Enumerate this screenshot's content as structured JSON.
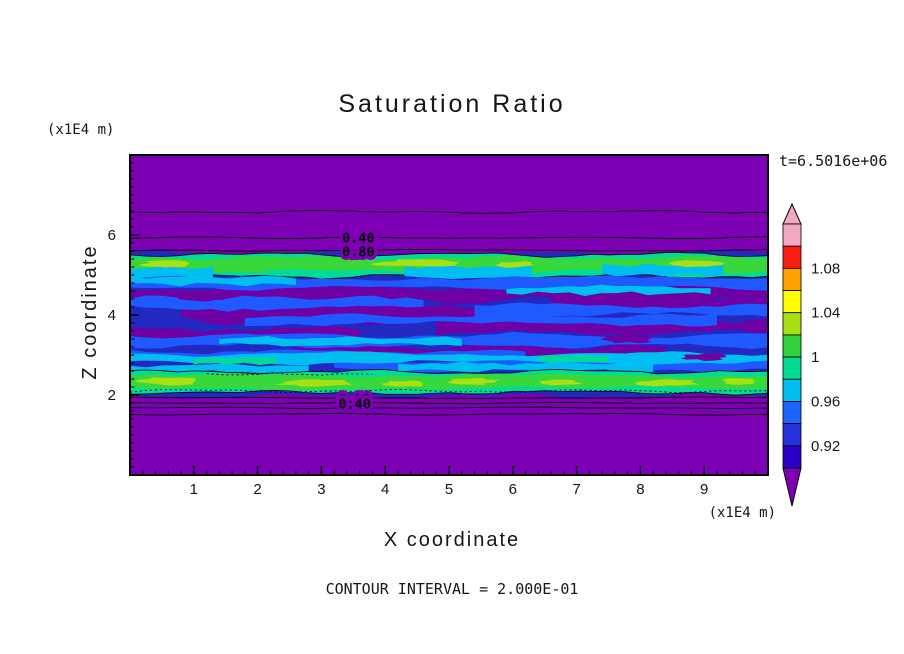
{
  "chart_data": {
    "type": "heatmap",
    "subtype": "filled-contour",
    "title": "Saturation Ratio",
    "xlabel": "X coordinate",
    "ylabel": "Z coordinate",
    "x_unit_label": "(x1E4 m)",
    "y_unit_label": "(x1E4 m)",
    "time_label": "t=6.5016e+06",
    "contour_interval_label": "CONTOUR INTERVAL = 2.000E-01",
    "contour_interval": 0.2,
    "xlim": [
      0,
      10
    ],
    "ylim": [
      0,
      8
    ],
    "x_ticks": [
      1,
      2,
      3,
      4,
      5,
      6,
      7,
      8,
      9
    ],
    "y_ticks": [
      2,
      4,
      6
    ],
    "minor_tick_step": 0.2,
    "colorbar": {
      "tick_labels": [
        "1.08",
        "1.04",
        "1",
        "0.96",
        "0.92"
      ],
      "levels_top_to_bottom": [
        1.12,
        1.1,
        1.08,
        1.06,
        1.04,
        1.02,
        1.0,
        0.98,
        0.96,
        0.94,
        0.92,
        0.9
      ],
      "segment_colors_top_to_bottom": [
        "#F2A9C0",
        "#FB1E12",
        "#FFA000",
        "#FFFF00",
        "#A8E014",
        "#32D23C",
        "#00DC96",
        "#00BEF0",
        "#1E64FF",
        "#2832DC",
        "#2A00C8"
      ],
      "over_color": "#F2A9C0",
      "under_color": "#7D00B4"
    },
    "palette": {
      "purple": "#7D00B4",
      "purple2": "#6E00A4",
      "navy": "#2228C0",
      "blue": "#1E5AFF",
      "cyan": "#00BEF0",
      "teal": "#00DC96",
      "green": "#38D73C",
      "yellowgreen": "#A8E014"
    },
    "field_bands": [
      {
        "z_from": 5.5,
        "z_to": 8.0,
        "value": "saturation < 0.90",
        "color": "purple"
      },
      {
        "z_from": 5.0,
        "z_to": 5.5,
        "value": "~1.00",
        "color": "teal-green"
      },
      {
        "z_from": 2.6,
        "z_to": 5.0,
        "value": "0.90 - 0.96",
        "color": "navy with blue/cyan/purple streaks"
      },
      {
        "z_from": 2.05,
        "z_to": 2.6,
        "value": "~1.00",
        "color": "teal-green"
      },
      {
        "z_from": 0.0,
        "z_to": 2.05,
        "value": "saturation < 0.90",
        "color": "purple"
      }
    ],
    "contour_labels": [
      {
        "text": "0.40",
        "x": 3.58,
        "z": 5.93
      },
      {
        "text": "0.80",
        "x": 3.58,
        "z": 5.58
      },
      {
        "text": "0.80",
        "x": 3.52,
        "z": 1.9
      },
      {
        "text": "0.40",
        "x": 3.52,
        "z": 1.78
      }
    ],
    "texture": {
      "ribbons": [
        {
          "x0": 0,
          "x1": 10,
          "z": 3.76,
          "h": 1.78,
          "amp": 2.5,
          "color": "navy",
          "seed": 11
        },
        {
          "x0": 0,
          "x1": 10,
          "z": 5.24,
          "h": 0.27,
          "amp": 2.5,
          "color": "teal",
          "seed": 21,
          "outline": true
        },
        {
          "x0": 0,
          "x1": 10,
          "z": 5.26,
          "h": 0.17,
          "amp": 2.2,
          "color": "green",
          "seed": 22
        },
        {
          "x0": 0,
          "x1": 1.3,
          "z": 5.05,
          "h": 0.13,
          "amp": 2,
          "color": "cyan",
          "seed": 23
        },
        {
          "x0": 4.3,
          "x1": 6.3,
          "z": 5.07,
          "h": 0.14,
          "amp": 2,
          "color": "cyan",
          "seed": 24
        },
        {
          "x0": 7.4,
          "x1": 9.3,
          "z": 5.12,
          "h": 0.12,
          "amp": 2,
          "color": "cyan",
          "seed": 25
        },
        {
          "x0": 0,
          "x1": 10,
          "z": 4.52,
          "h": 0.15,
          "amp": 3.5,
          "color": "purple2",
          "seed": 31
        },
        {
          "x0": 0.8,
          "x1": 6.2,
          "z": 4.02,
          "h": 0.2,
          "amp": 4,
          "color": "purple2",
          "seed": 32
        },
        {
          "x0": 4.8,
          "x1": 10,
          "z": 3.72,
          "h": 0.17,
          "amp": 3.5,
          "color": "purple2",
          "seed": 33
        },
        {
          "x0": 0,
          "x1": 3.6,
          "z": 3.5,
          "h": 0.15,
          "amp": 3,
          "color": "purple2",
          "seed": 34
        },
        {
          "x0": 2.2,
          "x1": 8.4,
          "z": 3.08,
          "h": 0.12,
          "amp": 3,
          "color": "purple2",
          "seed": 35
        },
        {
          "x0": 6.6,
          "x1": 10,
          "z": 4.28,
          "h": 0.13,
          "amp": 3,
          "color": "purple2",
          "seed": 36
        },
        {
          "x0": 0,
          "x1": 10,
          "z": 4.8,
          "h": 0.12,
          "amp": 2.5,
          "color": "blue",
          "seed": 41
        },
        {
          "x0": 0,
          "x1": 4.6,
          "z": 4.3,
          "h": 0.13,
          "amp": 3,
          "color": "blue",
          "seed": 42
        },
        {
          "x0": 5.4,
          "x1": 10,
          "z": 4.12,
          "h": 0.12,
          "amp": 3,
          "color": "blue",
          "seed": 43
        },
        {
          "x0": 1.8,
          "x1": 9.2,
          "z": 3.88,
          "h": 0.1,
          "amp": 2.5,
          "color": "blue",
          "seed": 44
        },
        {
          "x0": 0,
          "x1": 10,
          "z": 3.36,
          "h": 0.13,
          "amp": 3,
          "color": "blue",
          "seed": 45
        },
        {
          "x0": 0,
          "x1": 6.2,
          "z": 2.98,
          "h": 0.11,
          "amp": 2.5,
          "color": "blue",
          "seed": 46
        },
        {
          "x0": 3.2,
          "x1": 10,
          "z": 2.74,
          "h": 0.12,
          "amp": 2.5,
          "color": "blue",
          "seed": 47
        },
        {
          "x0": 0,
          "x1": 2.6,
          "z": 4.86,
          "h": 0.09,
          "amp": 2,
          "color": "cyan",
          "seed": 51
        },
        {
          "x0": 5.9,
          "x1": 9.1,
          "z": 4.62,
          "h": 0.08,
          "amp": 2,
          "color": "cyan",
          "seed": 52
        },
        {
          "x0": 1.4,
          "x1": 5.2,
          "z": 3.34,
          "h": 0.08,
          "amp": 2,
          "color": "cyan",
          "seed": 53
        },
        {
          "x0": 0,
          "x1": 10,
          "z": 2.92,
          "h": 0.11,
          "amp": 2.5,
          "color": "cyan",
          "seed": 54
        },
        {
          "x0": 4.2,
          "x1": 8.2,
          "z": 2.7,
          "h": 0.09,
          "amp": 2,
          "color": "cyan",
          "seed": 55
        },
        {
          "x0": 0,
          "x1": 2.8,
          "z": 2.66,
          "h": 0.09,
          "amp": 2,
          "color": "cyan",
          "seed": 56
        },
        {
          "x0": 1.0,
          "x1": 2.3,
          "z": 2.86,
          "h": 0.07,
          "amp": 1.5,
          "color": "teal",
          "seed": 57
        },
        {
          "x0": 6.4,
          "x1": 7.5,
          "z": 2.9,
          "h": 0.07,
          "amp": 1.5,
          "color": "teal",
          "seed": 58
        },
        {
          "x0": 0,
          "x1": 10,
          "z": 2.32,
          "h": 0.26,
          "amp": 2.2,
          "color": "teal",
          "seed": 61,
          "outline": true
        },
        {
          "x0": 0,
          "x1": 10,
          "z": 2.33,
          "h": 0.16,
          "amp": 2,
          "color": "green",
          "seed": 62
        }
      ],
      "blobs": [
        {
          "x": 0.55,
          "z": 5.27,
          "rx": 0.35,
          "rz": 0.09,
          "color": "yellowgreen",
          "seed": 71
        },
        {
          "x": 4.55,
          "z": 5.3,
          "rx": 0.75,
          "rz": 0.08,
          "color": "yellowgreen",
          "seed": 72
        },
        {
          "x": 6.05,
          "z": 5.26,
          "rx": 0.3,
          "rz": 0.07,
          "color": "yellowgreen",
          "seed": 73
        },
        {
          "x": 8.9,
          "z": 5.28,
          "rx": 0.38,
          "rz": 0.08,
          "color": "yellowgreen",
          "seed": 74
        },
        {
          "x": 0.6,
          "z": 2.34,
          "rx": 0.5,
          "rz": 0.09,
          "color": "yellowgreen",
          "seed": 81
        },
        {
          "x": 2.9,
          "z": 2.3,
          "rx": 0.55,
          "rz": 0.09,
          "color": "yellowgreen",
          "seed": 82
        },
        {
          "x": 4.3,
          "z": 2.28,
          "rx": 0.3,
          "rz": 0.08,
          "color": "yellowgreen",
          "seed": 83
        },
        {
          "x": 5.35,
          "z": 2.34,
          "rx": 0.4,
          "rz": 0.08,
          "color": "yellowgreen",
          "seed": 84
        },
        {
          "x": 6.75,
          "z": 2.31,
          "rx": 0.3,
          "rz": 0.07,
          "color": "yellowgreen",
          "seed": 85
        },
        {
          "x": 8.45,
          "z": 2.3,
          "rx": 0.45,
          "rz": 0.08,
          "color": "yellowgreen",
          "seed": 86
        },
        {
          "x": 9.55,
          "z": 2.34,
          "rx": 0.28,
          "rz": 0.07,
          "color": "yellowgreen",
          "seed": 87
        },
        {
          "x": 1.2,
          "z": 4.45,
          "rx": 0.4,
          "rz": 0.1,
          "color": "purple2",
          "seed": 91
        },
        {
          "x": 3.2,
          "z": 4.6,
          "rx": 0.5,
          "rz": 0.1,
          "color": "purple2",
          "seed": 92
        },
        {
          "x": 7.8,
          "z": 3.4,
          "rx": 0.45,
          "rz": 0.1,
          "color": "purple2",
          "seed": 93
        },
        {
          "x": 9.0,
          "z": 2.95,
          "rx": 0.35,
          "rz": 0.08,
          "color": "purple2",
          "seed": 94
        }
      ],
      "lines": [
        {
          "x0": 0,
          "x1": 10,
          "z": 6.58,
          "amp": 1.4,
          "seed": 101
        },
        {
          "x0": 0,
          "x1": 10,
          "z": 5.93,
          "amp": 0.9,
          "seed": 102
        },
        {
          "x0": 0,
          "x1": 10,
          "z": 5.62,
          "amp": 0.9,
          "seed": 103
        },
        {
          "x0": 0,
          "x1": 10,
          "z": 1.93,
          "amp": 0.7,
          "seed": 104
        },
        {
          "x0": 0,
          "x1": 10,
          "z": 1.8,
          "amp": 0.7,
          "seed": 105
        },
        {
          "x0": 0,
          "x1": 10,
          "z": 1.68,
          "amp": 0.7,
          "seed": 106
        },
        {
          "x0": 0,
          "x1": 10,
          "z": 1.52,
          "amp": 0.9,
          "seed": 107
        },
        {
          "x0": 0,
          "x1": 10,
          "z": 2.1,
          "amp": 1.6,
          "seed": 108,
          "dash": "2 3"
        },
        {
          "x0": 1.2,
          "x1": 3.8,
          "z": 2.52,
          "amp": 1.4,
          "seed": 109,
          "dash": "2 3"
        }
      ]
    }
  }
}
